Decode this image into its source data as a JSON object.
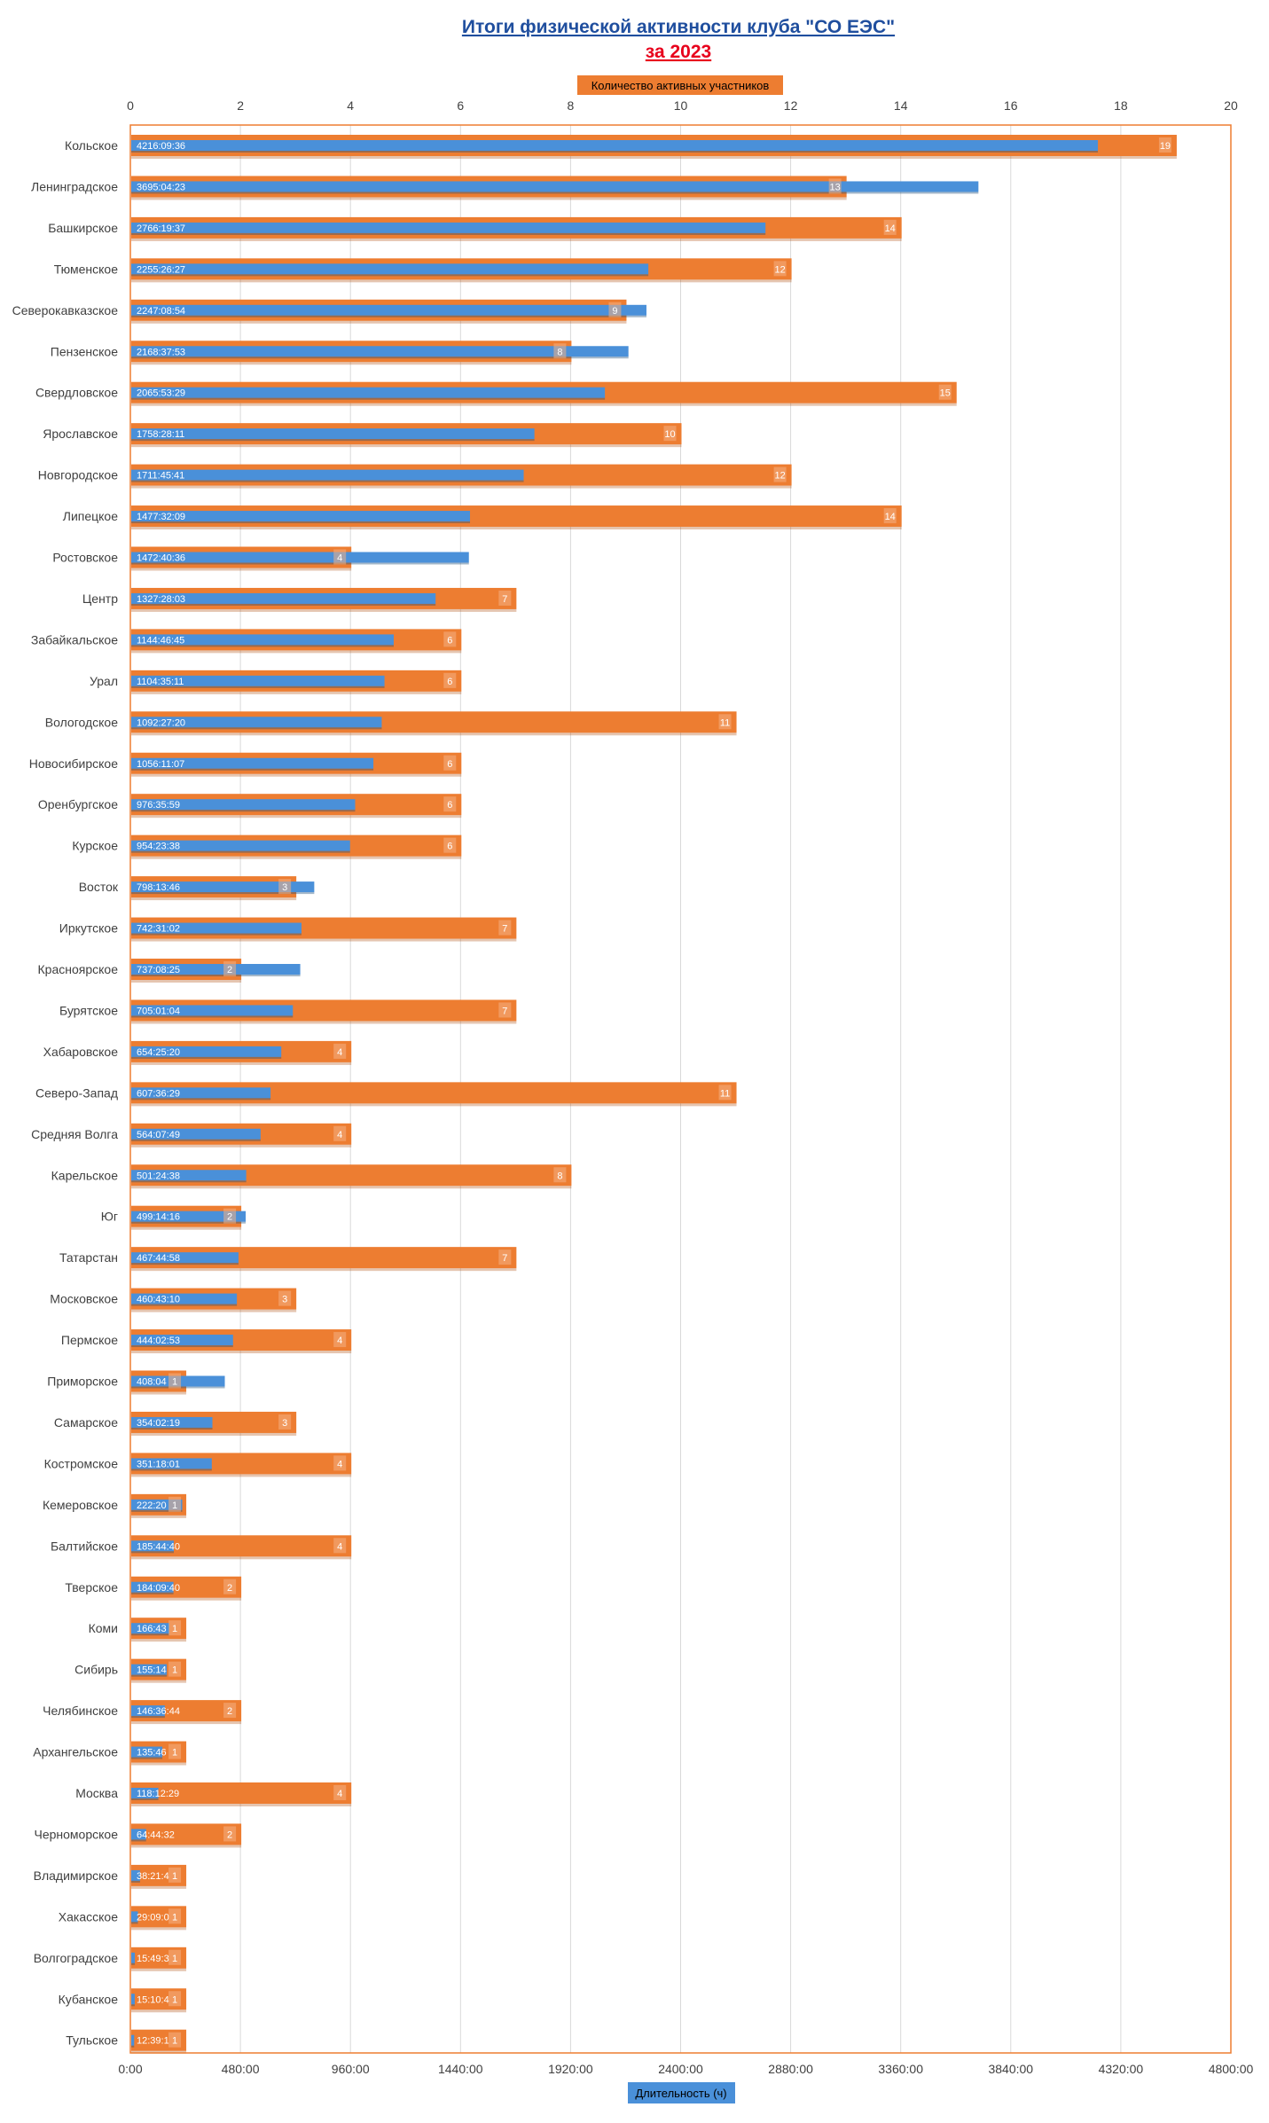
{
  "colors": {
    "count": "#ed7d31",
    "duration": "#4a90d9",
    "title_blue": "#1f4e9e",
    "title_red": "#e8001c",
    "frame": "#ed7d31",
    "grid": "#d9d9d9"
  },
  "chart_data": {
    "type": "bar",
    "orientation": "horizontal",
    "title": "Итоги  физической активности клуба \"СО ЕЭС\"",
    "subtitle": "за 2023",
    "top_axis_label": "Количество активных участников",
    "bottom_axis_label": "Длительность (ч)",
    "top_axis_range": [
      0,
      20
    ],
    "top_ticks": [
      "0",
      "2",
      "4",
      "6",
      "8",
      "10",
      "12",
      "14",
      "16",
      "18",
      "20"
    ],
    "bottom_axis_range_hours": [
      0,
      4800
    ],
    "bottom_ticks": [
      "0:00",
      "480:00",
      "960:00",
      "1440:00",
      "1920:00",
      "2400:00",
      "2880:00",
      "3360:00",
      "3840:00",
      "4320:00",
      "4800:00"
    ],
    "grid": true,
    "categories": [
      "Кольское",
      "Ленинградское",
      "Башкирское",
      "Тюменское",
      "Северокавказское",
      "Пензенское",
      "Свердловское",
      "Ярославское",
      "Новгородское",
      "Липецкое",
      "Ростовское",
      "Центр",
      "Забайкальское",
      "Урал",
      "Вологодское",
      "Новосибирское",
      "Оренбургское",
      "Курское",
      "Восток",
      "Иркутское",
      "Красноярское",
      "Бурятское",
      "Хабаровское",
      "Северо-Запад",
      "Средняя Волга",
      "Карельское",
      "Юг",
      "Татарстан",
      "Московское",
      "Пермское",
      "Приморское",
      "Самарское",
      "Костромское",
      "Кемеровское",
      "Балтийское",
      "Тверское",
      "Коми",
      "Сибирь",
      "Челябинское",
      "Архангельское",
      "Москва",
      "Черноморское",
      "Владимирское",
      "Хакасское",
      "Волгоградское",
      "Кубанское",
      "Тульское"
    ],
    "series": [
      {
        "name": "Количество активных участников",
        "values": [
          19,
          13,
          14,
          12,
          9,
          8,
          15,
          10,
          12,
          14,
          4,
          7,
          6,
          6,
          11,
          6,
          6,
          6,
          3,
          7,
          2,
          7,
          4,
          11,
          4,
          8,
          2,
          7,
          3,
          4,
          1,
          3,
          4,
          1,
          4,
          2,
          1,
          1,
          2,
          1,
          4,
          2,
          1,
          1,
          1,
          1,
          1
        ]
      },
      {
        "name": "Длительность (ч)",
        "values": [
          4216.16,
          3695.07,
          2766.33,
          2255.44,
          2247.15,
          2168.63,
          2065.89,
          1758.47,
          1711.76,
          1477.54,
          1472.68,
          1327.47,
          1144.78,
          1104.59,
          1092.46,
          1056.19,
          976.6,
          954.39,
          798.23,
          742.52,
          737.14,
          705.02,
          654.42,
          607.61,
          564.13,
          501.41,
          499.24,
          467.75,
          460.72,
          444.05,
          408.1,
          354.04,
          351.3,
          222.34,
          185.74,
          184.16,
          166.72,
          155.24,
          146.61,
          135.77,
          118.21,
          64.74,
          38.36,
          29.15,
          15.82,
          15.18,
          12.66
        ],
        "labels": [
          "4216:09:36",
          "3695:04:23",
          "2766:19:37",
          "2255:26:27",
          "2247:08:54",
          "2168:37:53",
          "2065:53:29",
          "1758:28:11",
          "1711:45:41",
          "1477:32:09",
          "1472:40:36",
          "1327:28:03",
          "1144:46:45",
          "1104:35:11",
          "1092:27:20",
          "1056:11:07",
          "976:35:59",
          "954:23:38",
          "798:13:46",
          "742:31:02",
          "737:08:25",
          "705:01:04",
          "654:25:20",
          "607:36:29",
          "564:07:49",
          "501:24:38",
          "499:14:16",
          "467:44:58",
          "460:43:10",
          "444:02:53",
          "408:04",
          "354:02:19",
          "351:18:01",
          "222:20",
          "185:44:40",
          "184:09:40",
          "166:43",
          "155:14",
          "146:36:44",
          "135:46",
          "118:12:29",
          "64:44:32",
          "38:21:4",
          "29:09:0",
          "15:49:3",
          "15:10:4",
          "12:39:1"
        ]
      }
    ]
  }
}
